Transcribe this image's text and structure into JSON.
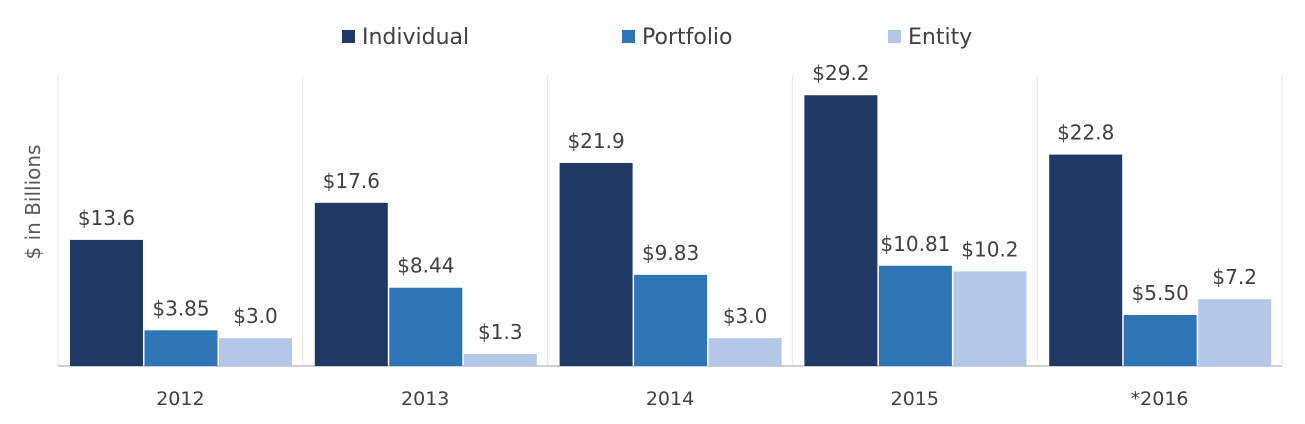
{
  "chart_data": {
    "type": "bar",
    "ylabel": "$ in Billions",
    "categories": [
      "2012",
      "2013",
      "2014",
      "2015",
      "*2016"
    ],
    "series": [
      {
        "name": "Individual",
        "color": "#203864",
        "values": [
          13.6,
          17.6,
          21.9,
          29.2,
          22.8
        ],
        "labels": [
          "$13.6",
          "$17.6",
          "$21.9",
          "$29.2",
          "$22.8"
        ]
      },
      {
        "name": "Portfolio",
        "color": "#2E75B6",
        "values": [
          3.85,
          8.44,
          9.83,
          10.81,
          5.5
        ],
        "labels": [
          "$3.85",
          "$8.44",
          "$9.83",
          "$10.81",
          "$5.50"
        ]
      },
      {
        "name": "Entity",
        "color": "#B4C7E7",
        "values": [
          3.0,
          1.3,
          3.0,
          10.2,
          7.2
        ],
        "labels": [
          "$3.0",
          "$1.3",
          "$3.0",
          "$10.2",
          "$7.2"
        ]
      }
    ],
    "ylim": [
      0,
      33
    ],
    "grid": "vertical-separators",
    "legend_position": "top"
  }
}
